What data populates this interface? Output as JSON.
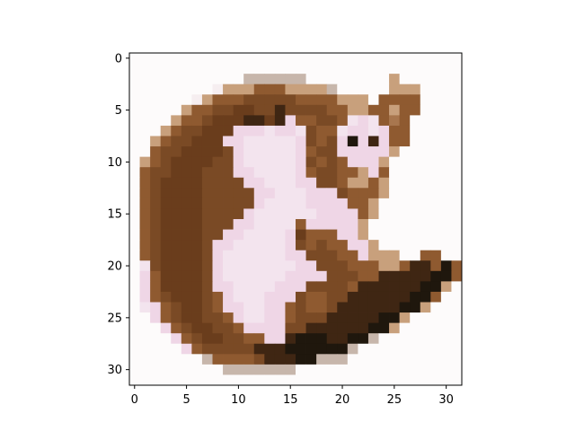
{
  "chart_data": {
    "type": "heatmap",
    "title": "",
    "xlabel": "",
    "ylabel": "",
    "xlim": [
      -0.5,
      31.5
    ],
    "ylim": [
      31.5,
      -0.5
    ],
    "grid": false,
    "legend": "none",
    "x_ticks": [
      0,
      5,
      10,
      15,
      20,
      25,
      30
    ],
    "y_ticks": [
      0,
      5,
      10,
      15,
      20,
      25,
      30
    ],
    "palette": {
      "W": "#fdfbfb",
      "L": "#f6eef0",
      "P": "#f3e4ee",
      "K": "#efd6e6",
      "G": "#c7b6ab",
      "T": "#c8a07c",
      "A": "#a8764e",
      "B": "#8f5a30",
      "R": "#7a4a25",
      "M": "#6a3d1c",
      "D": "#3f2613",
      "X": "#1f170d"
    },
    "pixels": [
      "WWWWWWWWWWWWWWWWWWWWWWWWWWWWWWWW",
      "WWWWWWWWWWWWWWWWWWWWWWWWWWWWWWWW",
      "WWWWWWWWWWWGGGGGGWWWWWWWWTWWWWWW",
      "WWWWWWWWLTTTBBBTTTTGWWWWWTTTWWWW",
      "WWWWWWLTBBBRRRRRBBBBTTTWBBBBWWWW",
      "WWWWWTBBRRMMRRDRRRRBBTTBBTBBWWWW",
      "WWWWTBBRMMMDDMDKBBRRBPKPBABWWWWW",
      "WWWTBRRMMMKKKPKKPRBBPKKPKBBWWWWW",
      "WWTBRRMMMKKPPPPPKRBRKXKDKBBWWWWW",
      "WWBRRMMMMRKPPPPPKBRRKKKKKTWWWWWW",
      "WTBRMMMMRRKPPPPPKRBRBKKKTWWWWWWW",
      "WBRRMMMRRRKKPPPPKBRRBBTKBWWWWWWW",
      "WBRMMMMRRRRKKPPPKKRRBTTBTWWWWWWW",
      "WBRMMMMRRRRRKKPPPKKKRBBBTWWWWWWW",
      "WBRMMMMRRRRRKPPPPKKKKBBTWWWWWWWW",
      "WBRMMMMRRRRKPPPPPPKKKKBTWWWWWWWW",
      "WBRMMMMRRRKKPPPPBKKKKKTWWWWWWWWW",
      "WBRMMMMRRKKPPPPKMBBBKKTWWWWWWWWW",
      "WBRMMMMRKKPPPPPKRBRBBKKTWWWWWWWW",
      "WBRMMMMRKPPPPPPKKRRRBBKTTTWWBBWW",
      "WPRMMMMRKPPPPPPPKKRRRBBBTTBDDBXB",
      "WKBMMMMRKPPPPPPKKKKRRRBBDDDDDXXB",
      "WKBMMMMRKKPPPPKKKRRRRBDDDDDDXXTW",
      "WKBRMMMRBKPPPKKKRBBRRDDDDDDXXBWW",
      "WPKBRMMRBKKPPKKBRBBRDDDDDDXXTWWW",
      "WWKBRMMRRBKPPKKBRRRDDDDDXXTWWWWW",
      "WWWKBRMMRRBKKKKRRDDDDDDXXTWWWWWW",
      "WWWWKBRMMRRBBKKDXXXDDXXGWWWWWWWW",
      "WWWWWKBRRRRRDDDXXXXXXGWWWWWWWWWW",
      "WWWWWWWGBBBBRDDDXXGGGWWWWWWWWWWW",
      "WWWWWWWWWGGGGGGGWWWWWWWWWWWWWWWW",
      "WWWWWWWWWWWWWWWWWWWWWWWWWWWWWWWW"
    ]
  }
}
